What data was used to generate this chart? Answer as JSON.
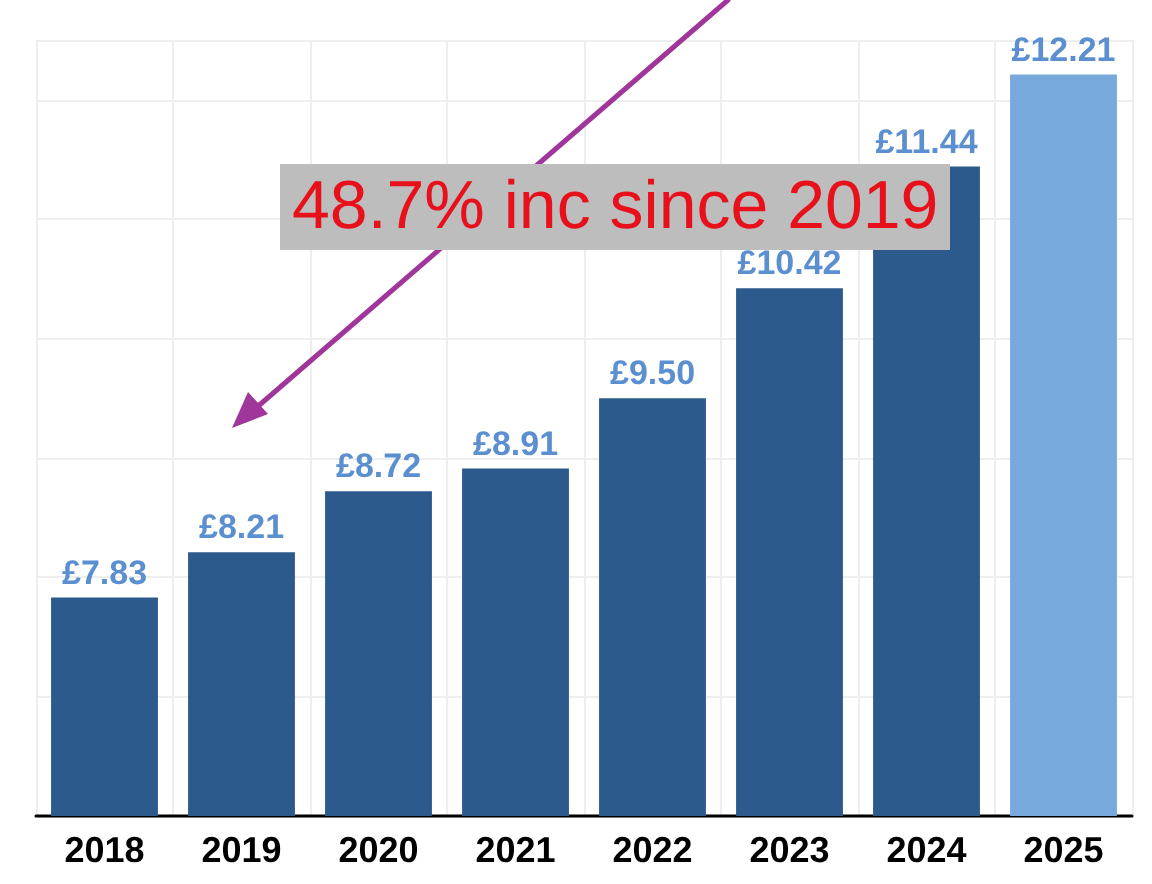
{
  "chart_data": {
    "type": "bar",
    "categories": [
      "2018",
      "2019",
      "2020",
      "2021",
      "2022",
      "2023",
      "2024",
      "2025"
    ],
    "values": [
      7.83,
      8.21,
      8.72,
      8.91,
      9.5,
      10.42,
      11.44,
      12.21
    ],
    "colors": [
      "#2c5a8c",
      "#2c5a8c",
      "#2c5a8c",
      "#2c5a8c",
      "#2c5a8c",
      "#2c5a8c",
      "#2c5a8c",
      "#78a9dc"
    ],
    "value_labels": [
      "£7.83",
      "£8.21",
      "£8.72",
      "£8.91",
      "£9.50",
      "£10.42",
      "£11.44",
      "£12.21"
    ],
    "ylim": [
      6,
      12.5
    ],
    "grid": true,
    "annotations": [
      "48.7% inc since 2019"
    ]
  }
}
